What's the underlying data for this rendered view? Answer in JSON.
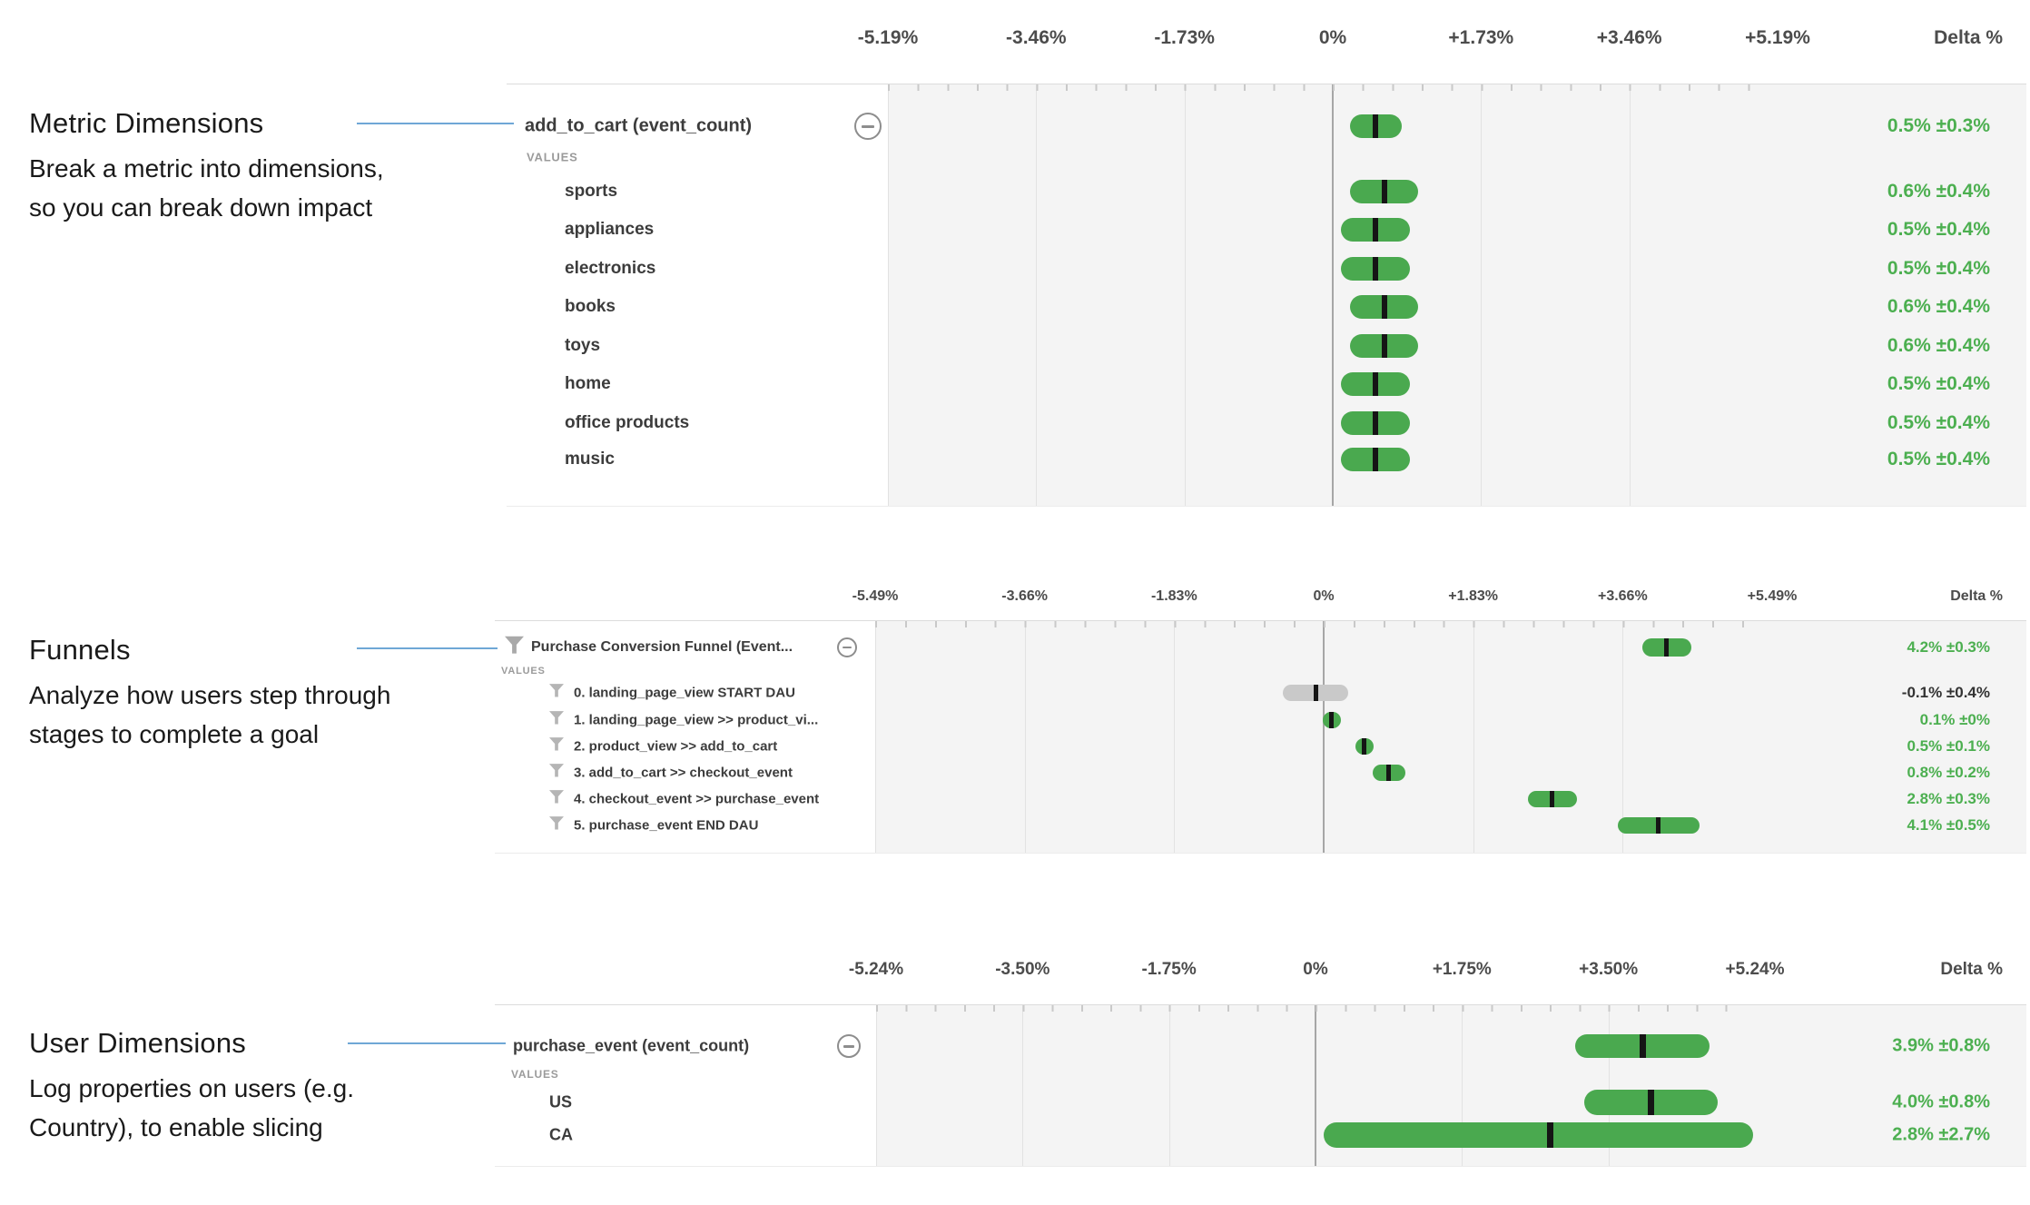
{
  "colors": {
    "bar_green": "#4aa94f",
    "bar_gray": "#c9c9c9",
    "median_tick": "#151515",
    "value_green": "#4caf50",
    "value_dark": "#333333",
    "connector_blue": "#6fa7d6",
    "axis_text": "#4c4c4c",
    "label_text": "#3c3c3c",
    "values_caption": "#9b9b9b"
  },
  "annotations": [
    {
      "title": "Metric Dimensions",
      "line1": "Break a metric into dimensions,",
      "line2": "so you can break down impact"
    },
    {
      "title": "Funnels",
      "line1": "Analyze how users step through",
      "line2": "stages to complete a goal"
    },
    {
      "title": "User Dimensions",
      "line1": "Log properties on users (e.g.",
      "line2": "Country), to enable slicing"
    }
  ],
  "chart_data": [
    {
      "type": "bar",
      "orientation": "horizontal_confidence_intervals",
      "title": "add_to_cart (event_count)",
      "delta_header": "Delta %",
      "values_label": "VALUES",
      "axis_ticks": [
        "-5.19%",
        "-3.46%",
        "-1.73%",
        "0%",
        "+1.73%",
        "+3.46%",
        "+5.19%"
      ],
      "axis_max": 5.19,
      "grid": true,
      "header_row": {
        "label": "add_to_cart (event_count)",
        "delta": 0.5,
        "ci": 0.3,
        "display": "0.5% ±0.3%",
        "bar_color": "green",
        "value_color": "green"
      },
      "rows": [
        {
          "label": "sports",
          "delta": 0.6,
          "ci": 0.4,
          "display": "0.6% ±0.4%",
          "bar_color": "green",
          "value_color": "green"
        },
        {
          "label": "appliances",
          "delta": 0.5,
          "ci": 0.4,
          "display": "0.5% ±0.4%",
          "bar_color": "green",
          "value_color": "green"
        },
        {
          "label": "electronics",
          "delta": 0.5,
          "ci": 0.4,
          "display": "0.5% ±0.4%",
          "bar_color": "green",
          "value_color": "green"
        },
        {
          "label": "books",
          "delta": 0.6,
          "ci": 0.4,
          "display": "0.6% ±0.4%",
          "bar_color": "green",
          "value_color": "green"
        },
        {
          "label": "toys",
          "delta": 0.6,
          "ci": 0.4,
          "display": "0.6% ±0.4%",
          "bar_color": "green",
          "value_color": "green"
        },
        {
          "label": "home",
          "delta": 0.5,
          "ci": 0.4,
          "display": "0.5% ±0.4%",
          "bar_color": "green",
          "value_color": "green"
        },
        {
          "label": "office products",
          "delta": 0.5,
          "ci": 0.4,
          "display": "0.5% ±0.4%",
          "bar_color": "green",
          "value_color": "green"
        },
        {
          "label": "music",
          "delta": 0.5,
          "ci": 0.4,
          "display": "0.5% ±0.4%",
          "bar_color": "green",
          "value_color": "green"
        }
      ]
    },
    {
      "type": "bar",
      "orientation": "horizontal_confidence_intervals",
      "title": "Purchase Conversion Funnel (Event...",
      "delta_header": "Delta %",
      "values_label": "VALUES",
      "axis_ticks": [
        "-5.49%",
        "-3.66%",
        "-1.83%",
        "0%",
        "+1.83%",
        "+3.66%",
        "+5.49%"
      ],
      "axis_max": 5.49,
      "grid": true,
      "header_row": {
        "label": "Purchase Conversion Funnel (Event...",
        "delta": 4.2,
        "ci": 0.3,
        "display": "4.2% ±0.3%",
        "bar_color": "green",
        "value_color": "green",
        "icon": "funnel-icon"
      },
      "rows": [
        {
          "label": "0. landing_page_view START DAU",
          "delta": -0.1,
          "ci": 0.4,
          "display": "-0.1% ±0.4%",
          "bar_color": "gray",
          "value_color": "dark",
          "icon": "funnel-icon"
        },
        {
          "label": "1. landing_page_view >> product_vi...",
          "delta": 0.1,
          "ci": 0.0,
          "display": "0.1% ±0%",
          "bar_color": "green",
          "value_color": "green",
          "icon": "funnel-icon"
        },
        {
          "label": "2. product_view >> add_to_cart",
          "delta": 0.5,
          "ci": 0.1,
          "display": "0.5% ±0.1%",
          "bar_color": "green",
          "value_color": "green",
          "icon": "funnel-icon"
        },
        {
          "label": "3. add_to_cart >> checkout_event",
          "delta": 0.8,
          "ci": 0.2,
          "display": "0.8% ±0.2%",
          "bar_color": "green",
          "value_color": "green",
          "icon": "funnel-icon"
        },
        {
          "label": "4. checkout_event >> purchase_event",
          "delta": 2.8,
          "ci": 0.3,
          "display": "2.8% ±0.3%",
          "bar_color": "green",
          "value_color": "green",
          "icon": "funnel-icon"
        },
        {
          "label": "5. purchase_event END DAU",
          "delta": 4.1,
          "ci": 0.5,
          "display": "4.1% ±0.5%",
          "bar_color": "green",
          "value_color": "green",
          "icon": "funnel-icon"
        }
      ]
    },
    {
      "type": "bar",
      "orientation": "horizontal_confidence_intervals",
      "title": "purchase_event (event_count)",
      "delta_header": "Delta %",
      "values_label": "VALUES",
      "axis_ticks": [
        "-5.24%",
        "-3.50%",
        "-1.75%",
        "0%",
        "+1.75%",
        "+3.50%",
        "+5.24%"
      ],
      "axis_max": 5.24,
      "grid": true,
      "header_row": {
        "label": "purchase_event (event_count)",
        "delta": 3.9,
        "ci": 0.8,
        "display": "3.9% ±0.8%",
        "bar_color": "green",
        "value_color": "green"
      },
      "rows": [
        {
          "label": "US",
          "delta": 4.0,
          "ci": 0.8,
          "display": "4.0% ±0.8%",
          "bar_color": "green",
          "value_color": "green"
        },
        {
          "label": "CA",
          "delta": 2.8,
          "ci": 2.7,
          "display": "2.8% ±2.7%",
          "bar_color": "green",
          "value_color": "green"
        }
      ]
    }
  ]
}
